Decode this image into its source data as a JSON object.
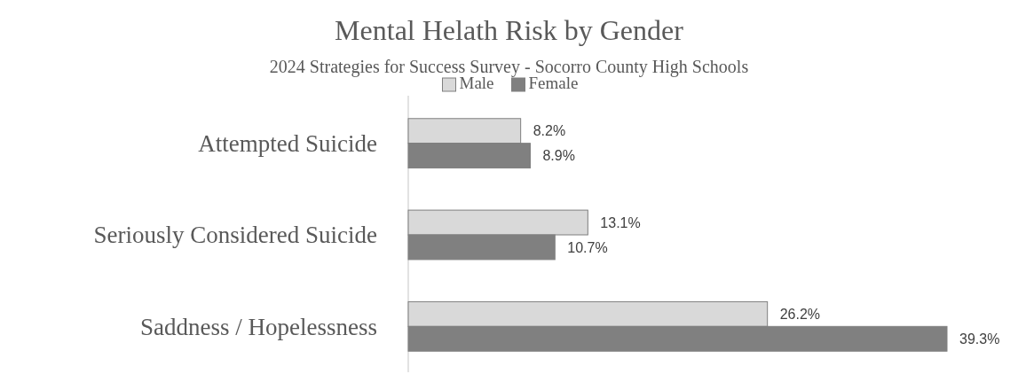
{
  "chart_data": {
    "type": "bar",
    "orientation": "horizontal",
    "title": "Mental Helath Risk by Gender",
    "subtitle": "2024 Strategies for Success Survey - Socorro County High Schools",
    "categories": [
      "Attempted Suicide",
      "Seriously Considered Suicide",
      "Saddness / Hopelessness"
    ],
    "series": [
      {
        "name": "Male",
        "color": "#d9d9d9",
        "values": [
          8.2,
          13.1,
          26.2
        ],
        "value_labels": [
          "8.2%",
          "13.1%",
          "26.2%"
        ]
      },
      {
        "name": "Female",
        "color": "#808080",
        "values": [
          8.9,
          10.7,
          39.3
        ],
        "value_labels": [
          "8.9%",
          "10.7%",
          "39.3%"
        ]
      }
    ],
    "legend": "top"
  }
}
